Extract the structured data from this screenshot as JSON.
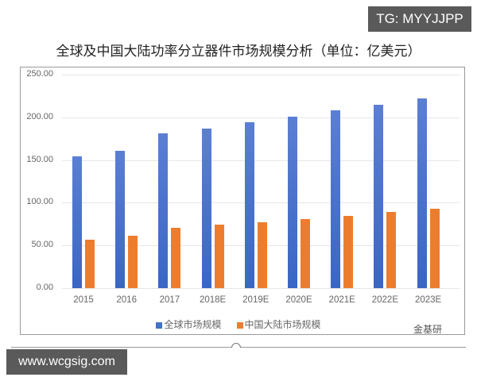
{
  "watermark_top": "TG: MYYJJPP",
  "watermark_bottom": "www.wcgsig.com",
  "watermark_source": "金基研",
  "chart_data": {
    "type": "bar",
    "title": "全球及中国大陆功率分立器件市场规模分析（单位：亿美元）",
    "xlabel": "",
    "ylabel": "",
    "ylim": [
      0,
      250
    ],
    "yticks": [
      "0.00",
      "50.00",
      "100.00",
      "150.00",
      "200.00",
      "250.00"
    ],
    "categories": [
      "2015",
      "2016",
      "2017",
      "2018E",
      "2019E",
      "2020E",
      "2021E",
      "2022E",
      "2023E"
    ],
    "series": [
      {
        "name": "全球市场规模",
        "color": "#4472c4",
        "values": [
          154,
          161,
          181,
          187,
          194,
          201,
          208,
          215,
          222
        ]
      },
      {
        "name": "中国大陆市场规模",
        "color": "#ed7d31",
        "values": [
          57,
          61,
          71,
          74,
          77,
          81,
          85,
          89,
          93
        ]
      }
    ],
    "grid": true,
    "legend_position": "bottom"
  }
}
